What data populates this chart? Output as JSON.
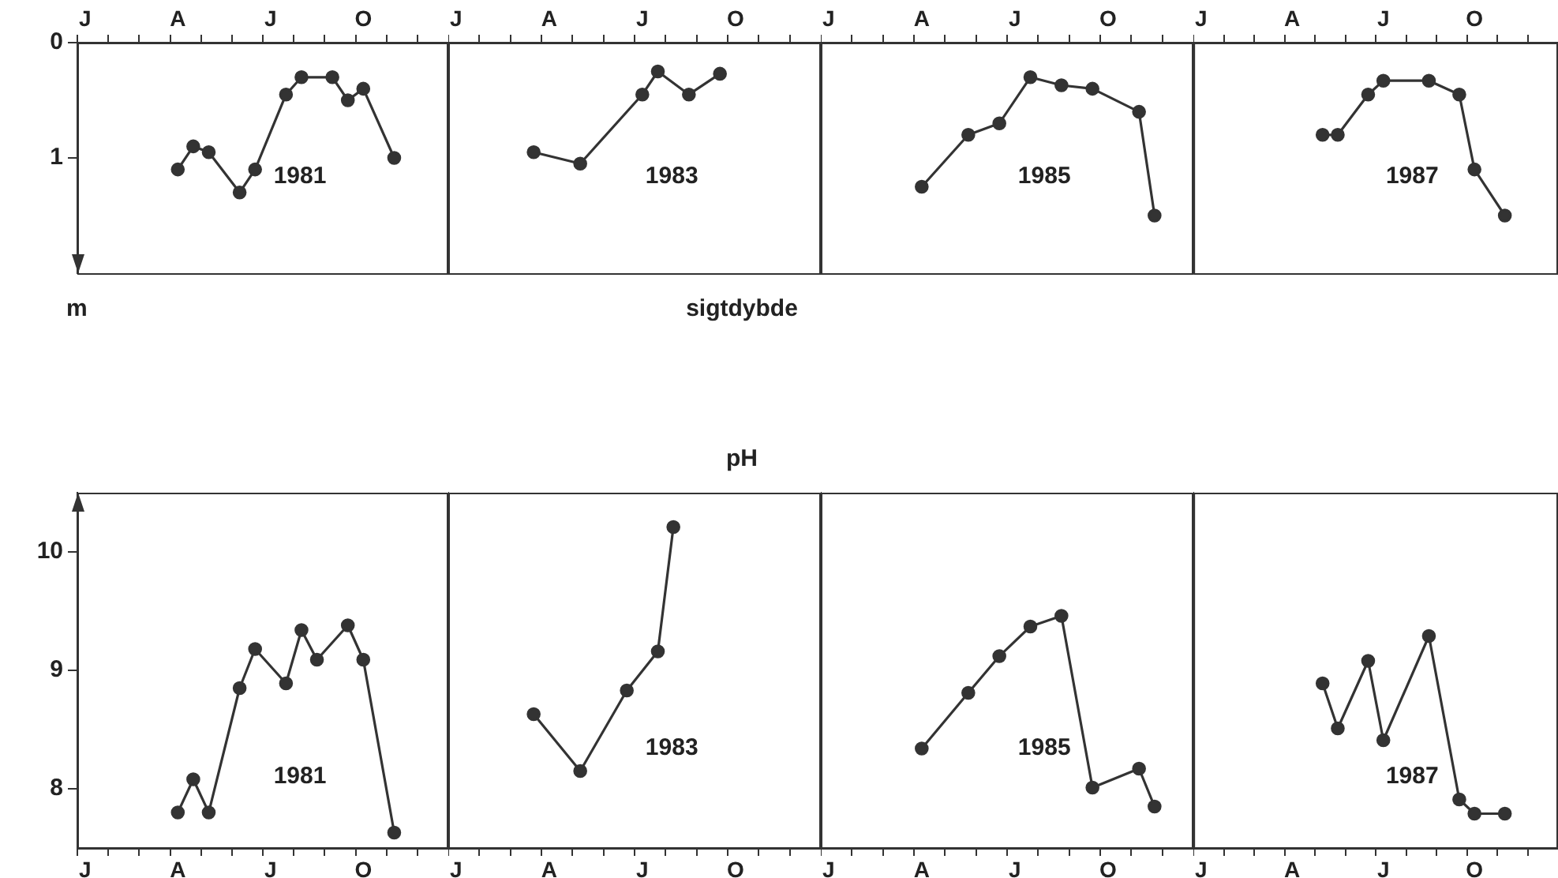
{
  "chart_data": [
    {
      "type": "line",
      "ylabel": "m",
      "categories": [
        "J",
        null,
        null,
        null,
        null,
        null,
        "A",
        null,
        null,
        null,
        null,
        null,
        "J",
        null,
        null,
        null,
        null,
        null,
        "O",
        null,
        null,
        null,
        null,
        null
      ],
      "ylim": [
        2,
        0
      ],
      "yticks": [
        0,
        1
      ],
      "marker": "circle",
      "line_style": "solid",
      "series": [
        {
          "name": "1981",
          "color": "#333333",
          "values": [
            null,
            null,
            null,
            null,
            null,
            null,
            1.1,
            0.9,
            0.95,
            null,
            1.3,
            1.1,
            null,
            0.45,
            0.3,
            null,
            0.3,
            0.5,
            0.4,
            null,
            1.0,
            null,
            null,
            null
          ]
        }
      ]
    },
    {
      "type": "line",
      "tick_labels": "x",
      "categories": [
        "J",
        null,
        null,
        null,
        null,
        null,
        "A",
        null,
        null,
        null,
        null,
        null,
        "J",
        null,
        null,
        null,
        null,
        null,
        "O",
        null,
        null,
        null,
        null,
        null
      ],
      "ylim": [
        2,
        0
      ],
      "yticks": [
        0,
        1
      ],
      "marker": "circle",
      "line_style": "solid",
      "series": [
        {
          "name": "1983",
          "color": "#333333",
          "values": [
            null,
            null,
            null,
            null,
            null,
            0.95,
            null,
            null,
            1.05,
            null,
            null,
            null,
            0.45,
            0.25,
            null,
            0.45,
            null,
            0.27,
            null,
            null,
            null,
            null,
            null,
            null
          ]
        }
      ]
    },
    {
      "type": "line",
      "tick_labels": "x",
      "categories": [
        "J",
        null,
        null,
        null,
        null,
        null,
        "A",
        null,
        null,
        null,
        null,
        null,
        "J",
        null,
        null,
        null,
        null,
        null,
        "O",
        null,
        null,
        null,
        null,
        null
      ],
      "ylim": [
        2,
        0
      ],
      "yticks": [
        0,
        1
      ],
      "marker": "circle",
      "line_style": "solid",
      "series": [
        {
          "name": "1985",
          "color": "#333333",
          "values": [
            null,
            null,
            null,
            null,
            null,
            null,
            1.25,
            null,
            null,
            0.8,
            null,
            0.7,
            null,
            0.3,
            null,
            0.37,
            null,
            0.4,
            null,
            null,
            0.6,
            1.5,
            null,
            null
          ]
        }
      ]
    },
    {
      "type": "line",
      "tick_labels": "x",
      "categories": [
        "J",
        null,
        null,
        null,
        null,
        null,
        "A",
        null,
        null,
        null,
        null,
        null,
        "J",
        null,
        null,
        null,
        null,
        null,
        "O",
        null,
        null,
        null,
        null,
        null
      ],
      "ylim": [
        2,
        0
      ],
      "yticks": [
        0,
        1
      ],
      "marker": "circle",
      "line_style": "solid",
      "series": [
        {
          "name": "1987",
          "color": "#333333",
          "values": [
            null,
            null,
            null,
            null,
            null,
            null,
            null,
            null,
            0.8,
            0.8,
            null,
            0.45,
            0.33,
            null,
            null,
            0.33,
            null,
            0.45,
            1.1,
            null,
            1.5,
            null,
            null,
            null
          ]
        }
      ]
    },
    {
      "type": "other",
      "title": "sigtdybde"
    },
    {
      "type": "other",
      "title": "pH"
    },
    {
      "type": "line",
      "categories": [
        "J",
        null,
        null,
        null,
        null,
        null,
        "A",
        null,
        null,
        null,
        null,
        null,
        "J",
        null,
        null,
        null,
        null,
        null,
        "O",
        null,
        null,
        null,
        null,
        null
      ],
      "ylim": [
        7.5,
        10.5
      ],
      "yticks": [
        8,
        9,
        10
      ],
      "marker": "circle",
      "line_style": "solid",
      "series": [
        {
          "name": "1981",
          "color": "#333333",
          "values": [
            null,
            null,
            null,
            null,
            null,
            null,
            7.8,
            8.08,
            7.8,
            null,
            8.85,
            9.18,
            null,
            8.89,
            9.34,
            9.09,
            null,
            9.38,
            9.09,
            null,
            7.63,
            null,
            null,
            null
          ]
        }
      ]
    },
    {
      "type": "line",
      "tick_labels": "x",
      "categories": [
        "J",
        null,
        null,
        null,
        null,
        null,
        "A",
        null,
        null,
        null,
        null,
        null,
        "J",
        null,
        null,
        null,
        null,
        null,
        "O",
        null,
        null,
        null,
        null,
        null
      ],
      "ylim": [
        7.5,
        10.5
      ],
      "yticks": [
        8,
        9,
        10
      ],
      "marker": "circle",
      "line_style": "solid",
      "series": [
        {
          "name": "1983",
          "color": "#333333",
          "values": [
            null,
            null,
            null,
            null,
            null,
            8.63,
            null,
            null,
            8.15,
            null,
            null,
            8.83,
            null,
            9.16,
            10.21,
            null,
            null,
            null,
            null,
            null,
            null,
            null,
            null,
            null
          ]
        }
      ]
    },
    {
      "type": "line",
      "tick_labels": "x",
      "categories": [
        "J",
        null,
        null,
        null,
        null,
        null,
        "A",
        null,
        null,
        null,
        null,
        null,
        "J",
        null,
        null,
        null,
        null,
        null,
        "O",
        null,
        null,
        null,
        null,
        null
      ],
      "ylim": [
        7.5,
        10.5
      ],
      "yticks": [
        8,
        9,
        10
      ],
      "marker": "circle",
      "line_style": "solid",
      "series": [
        {
          "name": "1985",
          "color": "#333333",
          "values": [
            null,
            null,
            null,
            null,
            null,
            null,
            8.34,
            null,
            null,
            8.81,
            null,
            9.12,
            null,
            9.37,
            null,
            9.46,
            null,
            8.01,
            null,
            null,
            8.17,
            7.85,
            null,
            null
          ]
        }
      ]
    },
    {
      "type": "line",
      "tick_labels": "x",
      "categories": [
        "J",
        null,
        null,
        null,
        null,
        null,
        "A",
        null,
        null,
        null,
        null,
        null,
        "J",
        null,
        null,
        null,
        null,
        null,
        "O",
        null,
        null,
        null,
        null,
        null
      ],
      "ylim": [
        7.5,
        10.5
      ],
      "yticks": [
        8,
        9,
        10
      ],
      "marker": "circle",
      "line_style": "solid",
      "series": [
        {
          "name": "1987",
          "color": "#333333",
          "values": [
            null,
            null,
            null,
            null,
            null,
            null,
            null,
            null,
            8.89,
            8.51,
            null,
            9.08,
            8.41,
            null,
            null,
            9.29,
            null,
            7.91,
            7.79,
            null,
            7.79,
            null,
            null,
            null
          ]
        }
      ]
    }
  ]
}
